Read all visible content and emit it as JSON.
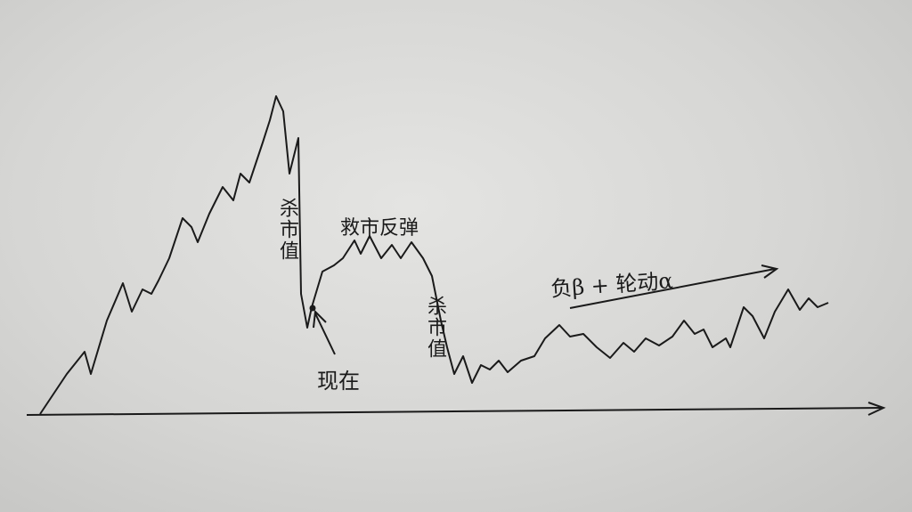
{
  "annotations": {
    "sell_off_1": "杀市值",
    "rebound": "救市反弹",
    "now": "现在",
    "sell_off_2": "杀市值",
    "trend": "负β + 轮动α"
  },
  "colors": {
    "ink": "#1a1a1a",
    "paper": "#d8d8d6"
  }
}
